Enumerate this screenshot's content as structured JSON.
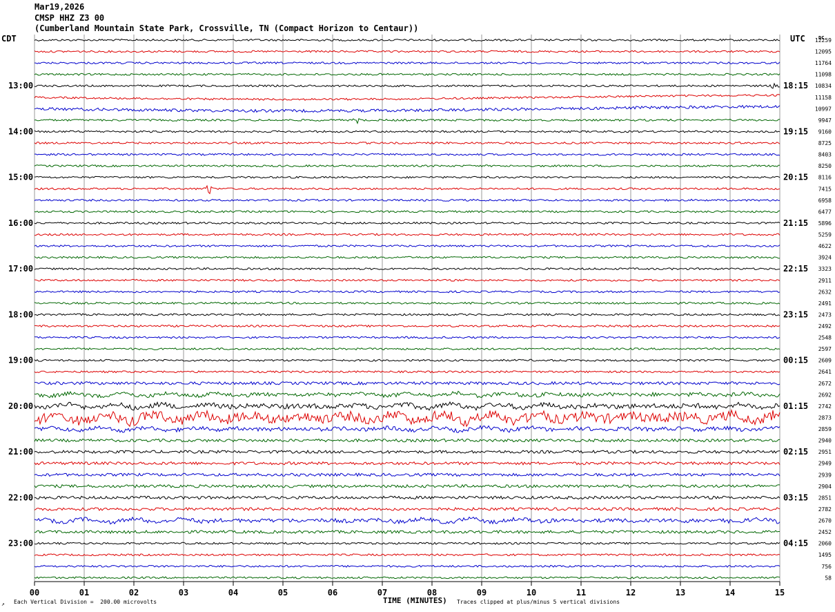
{
  "header": {
    "date": "Mar19,2026",
    "station": "CMSP HHZ Z3 00",
    "location": "(Cumberland Mountain State Park, Crossville, TN (Compact Horizon to Centaur))"
  },
  "left_zone_label": "CDT",
  "right_zone_label": "UTC",
  "dc_label": "DC",
  "footer": {
    "scale_note": "Each Vertical Division =  200.00 microvolts",
    "clip_note": "Traces clipped at plus/minus 5 vertical divisions",
    "corner_mark": "↗"
  },
  "chart_data": {
    "type": "line",
    "subtype": "helicorder",
    "xlabel": "TIME (MINUTES)",
    "xlim": [
      0,
      15
    ],
    "x_ticks": [
      "00",
      "01",
      "02",
      "03",
      "04",
      "05",
      "06",
      "07",
      "08",
      "09",
      "10",
      "11",
      "12",
      "13",
      "14",
      "15"
    ],
    "rows_per_hour": 4,
    "row_minutes": 15,
    "left_time_labels": [
      "13:00",
      "14:00",
      "15:00",
      "16:00",
      "17:00",
      "18:00",
      "19:00",
      "20:00",
      "21:00",
      "22:00",
      "23:00"
    ],
    "right_time_labels": [
      "18:15",
      "19:15",
      "20:15",
      "21:15",
      "22:15",
      "23:15",
      "00:15",
      "01:15",
      "02:15",
      "03:15",
      "04:15"
    ],
    "trace_colors": [
      "#000000",
      "#dd0000",
      "#0000cc",
      "#006600"
    ],
    "dc_offsets": [
      12259,
      12095,
      11764,
      11098,
      10834,
      11158,
      10997,
      9947,
      9160,
      8725,
      8403,
      8250,
      8116,
      7415,
      6958,
      6477,
      5896,
      5259,
      4622,
      3924,
      3323,
      2911,
      2632,
      2491,
      2473,
      2492,
      2548,
      2597,
      2609,
      2641,
      2672,
      2692,
      2742,
      2873,
      2859,
      2940,
      2951,
      2949,
      2939,
      2904,
      2851,
      2782,
      2670,
      2452,
      2060,
      1495,
      756,
      58
    ],
    "events": [
      {
        "row": 4,
        "minute": 14.9,
        "label": "spike"
      },
      {
        "row": 7,
        "minute": 6.5,
        "label": "spike"
      },
      {
        "row": 13,
        "minute": 3.5,
        "label": "burst"
      }
    ],
    "noise_levels": [
      2,
      2,
      2,
      2,
      2,
      2,
      3,
      2,
      2,
      2,
      2,
      2,
      2,
      2,
      2,
      2,
      2,
      2,
      2,
      2,
      2,
      2,
      2,
      2,
      2,
      2,
      2,
      2,
      2,
      2,
      3,
      4,
      5,
      10,
      4,
      3,
      3,
      3,
      3,
      3,
      3,
      3,
      4,
      3,
      2,
      2,
      2,
      2
    ]
  }
}
